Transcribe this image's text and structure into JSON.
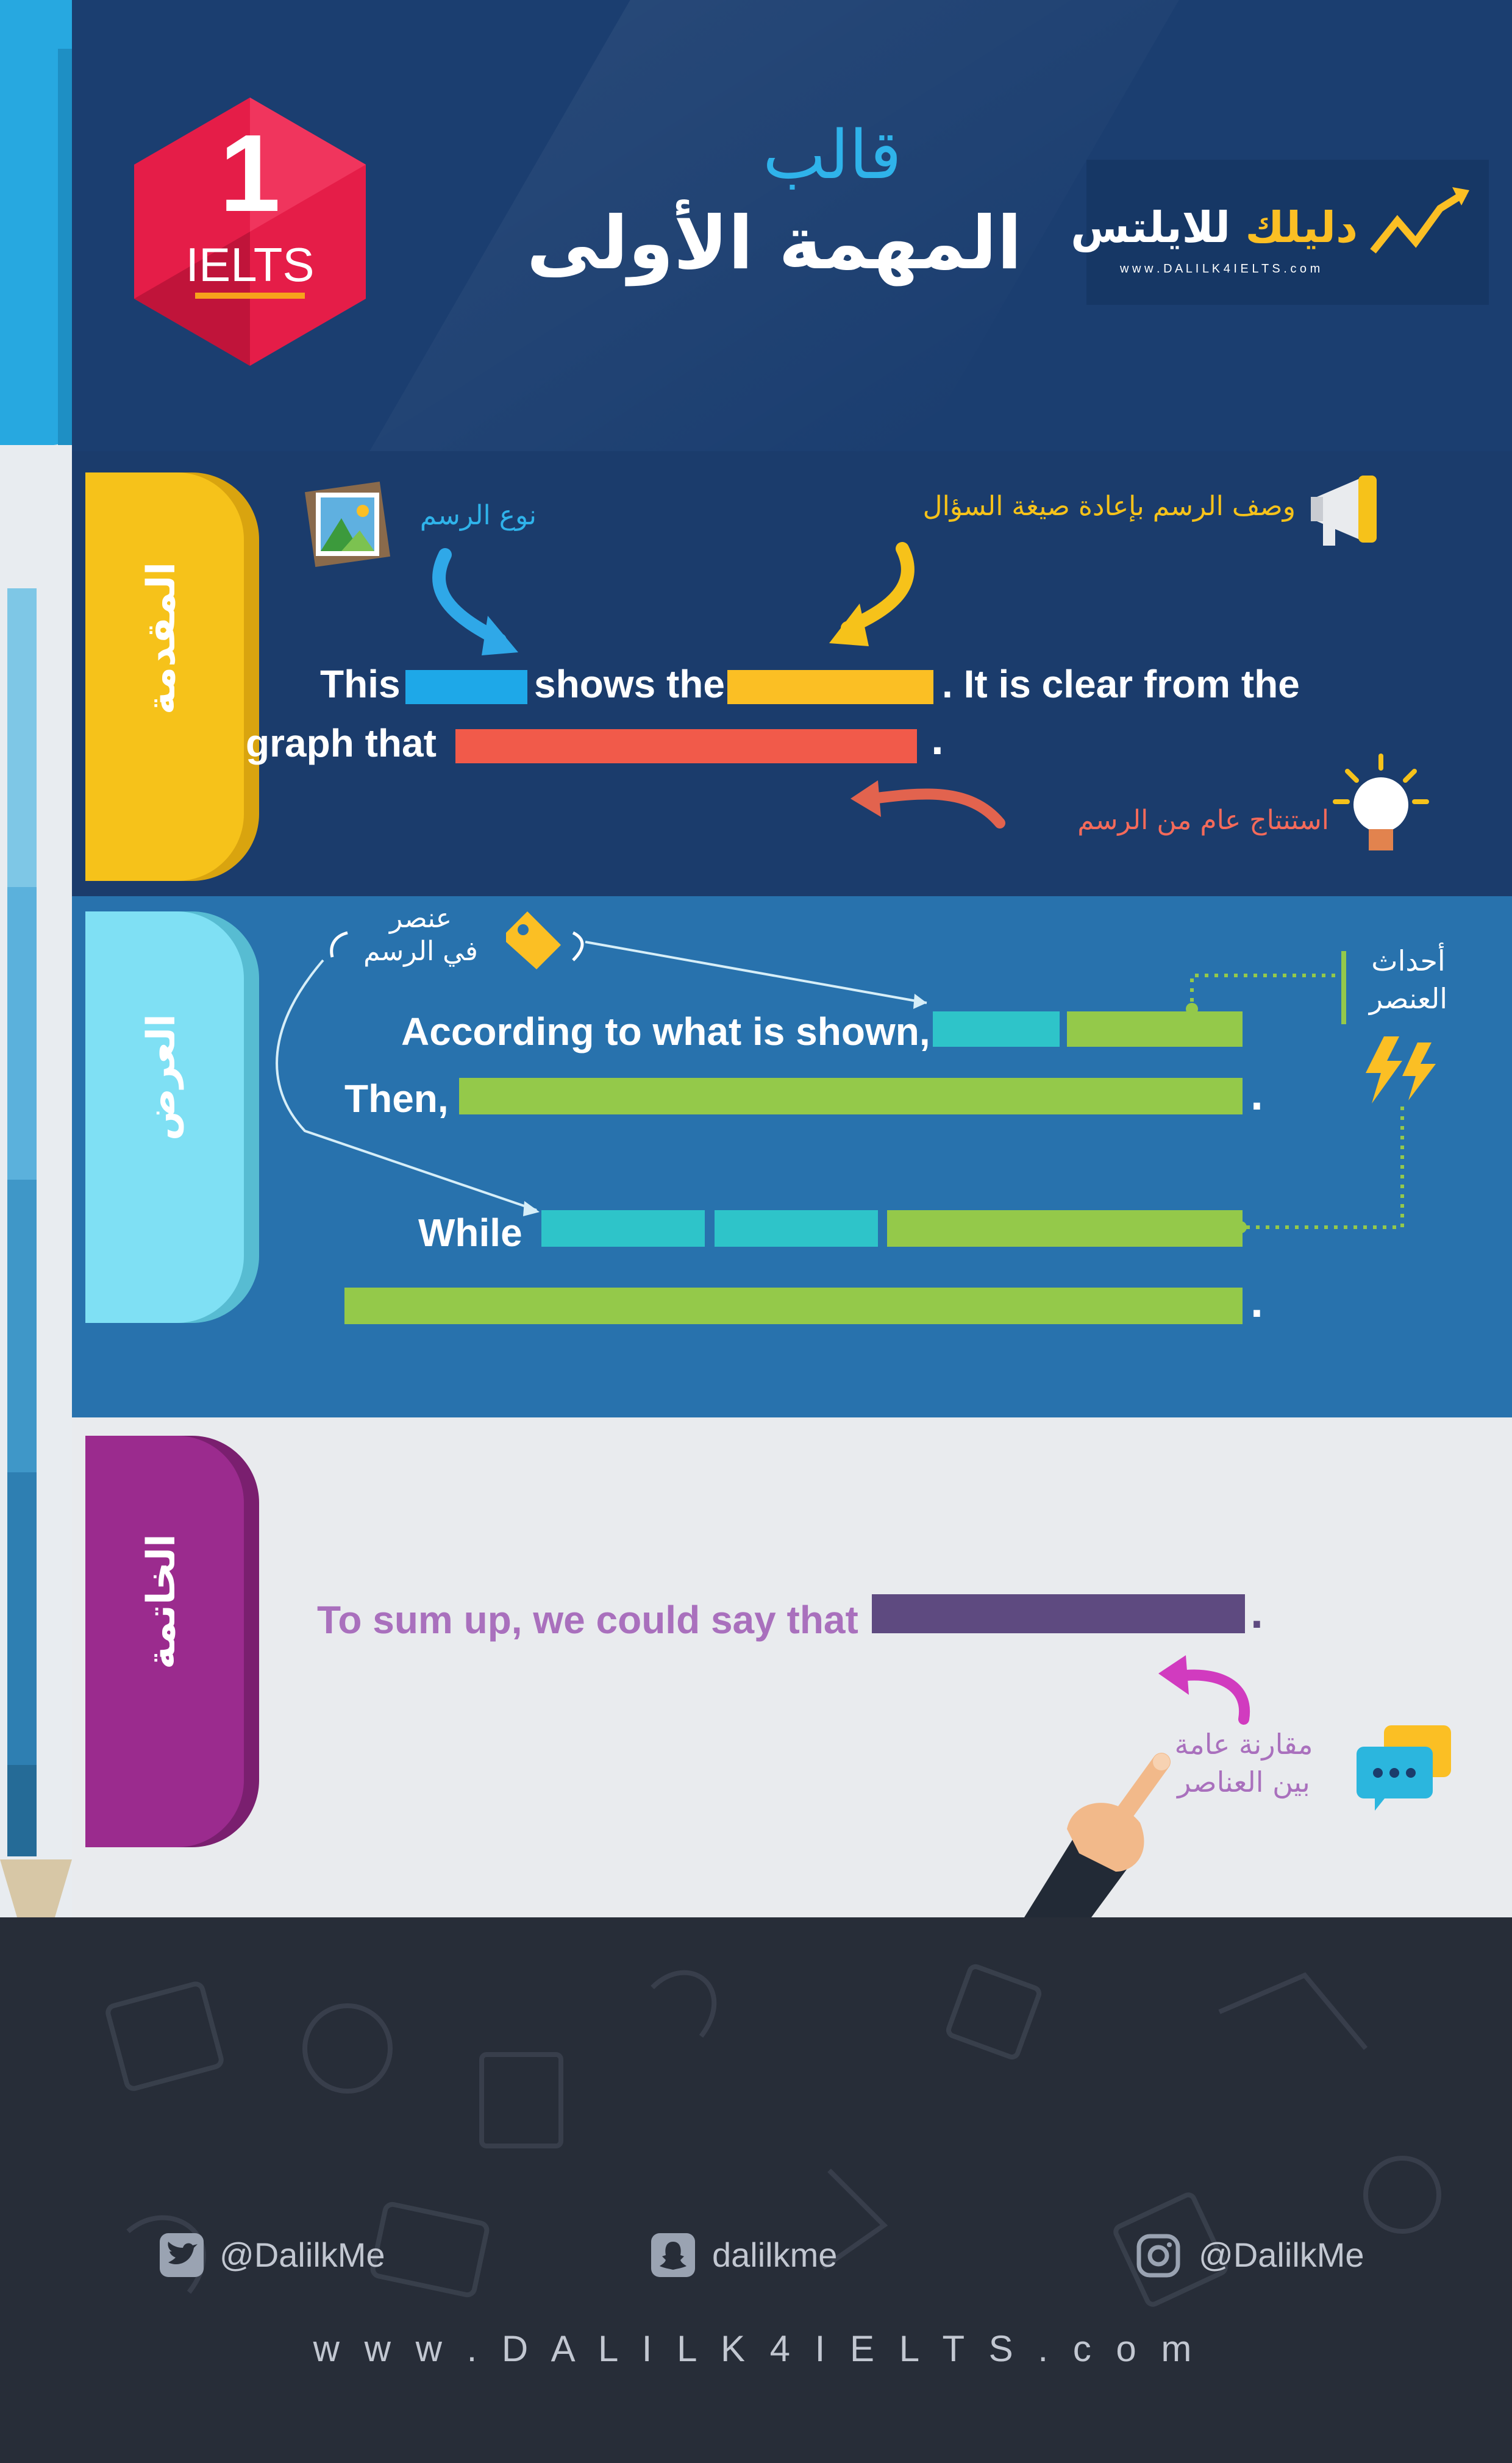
{
  "header": {
    "badge_number": "1",
    "badge_label": "IELTS",
    "title_small": "قالب",
    "title_main": "المهمة الأولى",
    "logo_name": "دليلك للايلتس",
    "logo_url": "w w w . D A L I L K 4 I E L T S . c o m"
  },
  "intro": {
    "tab_label": "المقدمة",
    "graph_type_note": "نوع الرسم",
    "description_note": "وصف الرسم بإعادة صيغة السؤال",
    "conclusion_note": "استنتاج عام من الرسم",
    "line1_this": "This",
    "line1_shows": "shows the",
    "line1_clear": ". It is clear from the",
    "line2_graph": "graph that",
    "line2_dot": "."
  },
  "body": {
    "tab_label": "العرض",
    "element_note_line1": "عنصر",
    "element_note_line2": "في الرسم",
    "events_note_line1": "أحداث",
    "events_note_line2": "العنصر",
    "according": "According to what is shown,",
    "then": "Then,",
    "then_dot": ".",
    "while": "While",
    "last_dot": "."
  },
  "conclusion": {
    "tab_label": "الخاتمة",
    "sum_up": "To sum up,  we could say that",
    "sum_dot": ".",
    "compare_note_line1": "مقارنة عامة",
    "compare_note_line2": "بين العناصر"
  },
  "footer": {
    "twitter": "@DalilkMe",
    "snapchat": "dalilkme",
    "instagram": "@DalilkMe",
    "website": "w w w . D A L I L K 4 I E L T S . c o m"
  },
  "colors": {
    "blue_bar": "#1ea8e8",
    "yellow_bar": "#fbbf24",
    "red_bar": "#f15a4a",
    "teal_bar": "#2ec4c9",
    "green_bar": "#94c94a",
    "purple_bar": "#5e4a80",
    "intro_tab": "#f6c21a",
    "body_tab": "#7fe0f4",
    "conclusion_tab": "#9b2b8e"
  }
}
